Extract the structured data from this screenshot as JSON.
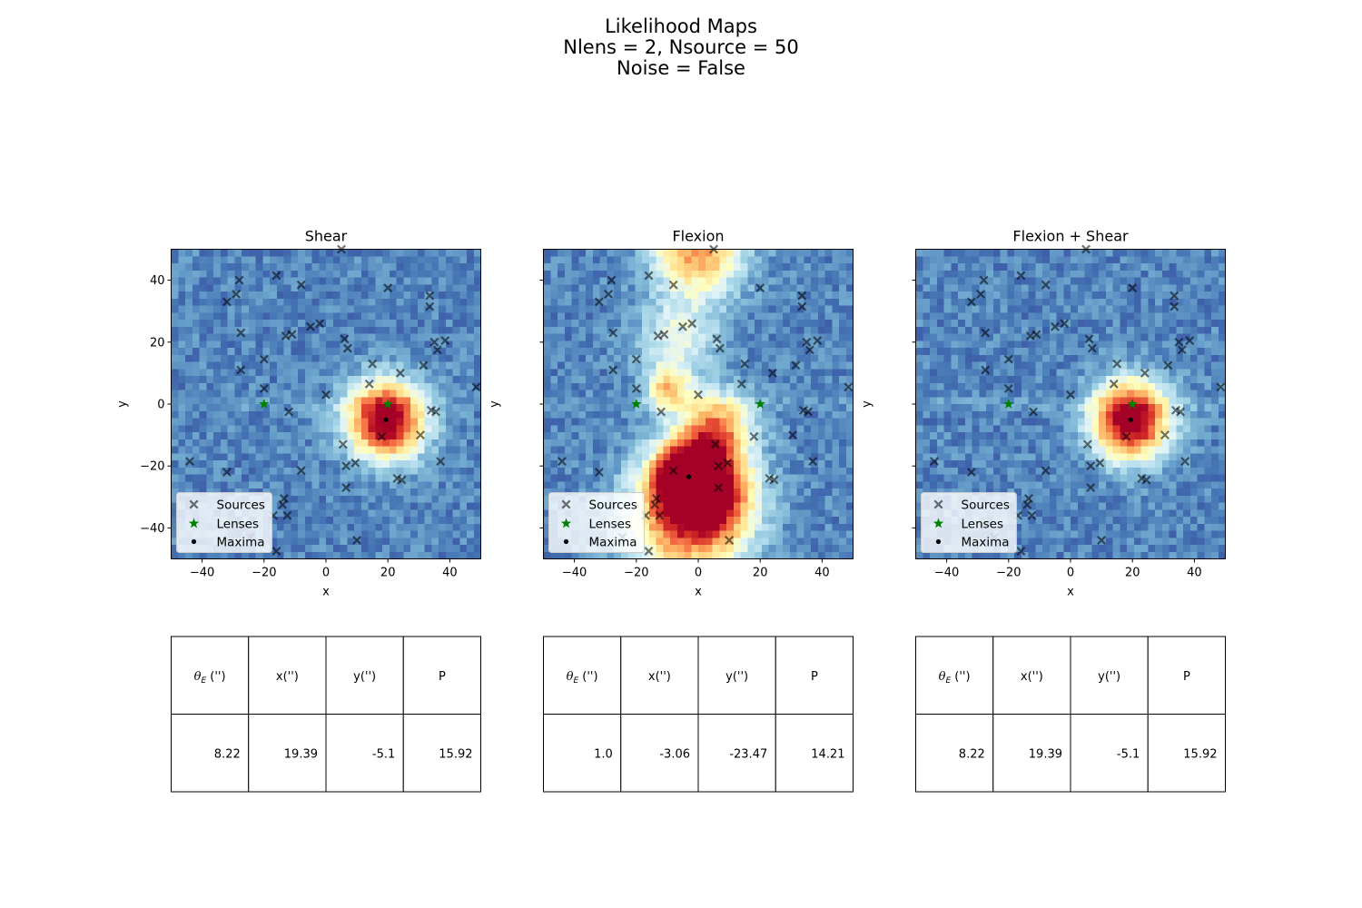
{
  "figure": {
    "suptitle": [
      "Likelihood Maps",
      "Nlens = 2, Nsource = 50",
      "Noise = False"
    ]
  },
  "legend": {
    "sources": "Sources",
    "lenses": "Lenses",
    "maxima": "Maxima"
  },
  "colors": {
    "sources_marker": "#000000",
    "lenses_marker": "#008000",
    "maxima_marker": "#000000",
    "colormap": "RdYlBu_r"
  },
  "chart_data": [
    {
      "type": "heatmap",
      "title": "Shear",
      "xlabel": "x",
      "ylabel": "y",
      "xlim": [
        -50,
        50
      ],
      "ylim": [
        -50,
        50
      ],
      "xticks": [
        -40,
        -20,
        0,
        20,
        40
      ],
      "yticks": [
        -40,
        -20,
        0,
        20,
        40
      ],
      "xtick_labels": [
        "−40",
        "−20",
        "0",
        "20",
        "40"
      ],
      "ytick_labels": [
        "−40",
        "−20",
        "0",
        "20",
        "40"
      ],
      "legend_position": "lower-left",
      "likelihood_peaks": [
        {
          "x": 19.39,
          "y": -5.1,
          "width": 8.5,
          "amplitude": 1.0
        }
      ],
      "lenses": [
        [
          -20,
          0
        ],
        [
          20,
          0
        ]
      ],
      "maxima": [
        [
          19.39,
          -5.1
        ]
      ],
      "table": {
        "columns": [
          "θ_E ('')",
          "x('')",
          "y('')",
          "P"
        ],
        "row": [
          "8.22",
          "19.39",
          "-5.1",
          "15.92"
        ]
      }
    },
    {
      "type": "heatmap",
      "title": "Flexion",
      "xlabel": "x",
      "ylabel": "y",
      "xlim": [
        -50,
        50
      ],
      "ylim": [
        -50,
        50
      ],
      "xticks": [
        -40,
        -20,
        0,
        20,
        40
      ],
      "yticks": [
        -40,
        -20,
        0,
        20,
        40
      ],
      "xtick_labels": [
        "−40",
        "−20",
        "0",
        "20",
        "40"
      ],
      "ytick_labels": [
        "−40",
        "−20",
        "0",
        "20",
        "40"
      ],
      "legend_position": "lower-left",
      "likelihood_peaks": [
        {
          "x": -3.06,
          "y": -23.47,
          "width": 8,
          "amplitude": 1.0
        },
        {
          "x": -4,
          "y": -38,
          "width": 13,
          "amplitude": 0.68
        },
        {
          "x": 6,
          "y": -8,
          "width": 8,
          "amplitude": 0.62
        },
        {
          "x": -10,
          "y": 5,
          "width": 5,
          "amplitude": 0.48
        },
        {
          "x": 0,
          "y": 50,
          "width": 10,
          "amplitude": 0.62
        },
        {
          "x": -6,
          "y": 22,
          "width": 9,
          "amplitude": 0.28
        },
        {
          "x": 6,
          "y": -30,
          "width": 9,
          "amplitude": 0.5
        }
      ],
      "lenses": [
        [
          -20,
          0
        ],
        [
          20,
          0
        ]
      ],
      "maxima": [
        [
          -3.06,
          -23.47
        ]
      ],
      "table": {
        "columns": [
          "θ_E ('')",
          "x('')",
          "y('')",
          "P"
        ],
        "row": [
          "1.0",
          "-3.06",
          "-23.47",
          "14.21"
        ]
      }
    },
    {
      "type": "heatmap",
      "title": "Flexion + Shear",
      "xlabel": "x",
      "ylabel": "y",
      "xlim": [
        -50,
        50
      ],
      "ylim": [
        -50,
        50
      ],
      "xticks": [
        -40,
        -20,
        0,
        20,
        40
      ],
      "yticks": [
        -40,
        -20,
        0,
        20,
        40
      ],
      "xtick_labels": [
        "−40",
        "−20",
        "0",
        "20",
        "40"
      ],
      "ytick_labels": [
        "−40",
        "−20",
        "0",
        "20",
        "40"
      ],
      "legend_position": "lower-left",
      "likelihood_peaks": [
        {
          "x": 19.39,
          "y": -5.1,
          "width": 8.5,
          "amplitude": 1.0
        }
      ],
      "lenses": [
        [
          -20,
          0
        ],
        [
          20,
          0
        ]
      ],
      "maxima": [
        [
          19.39,
          -5.1
        ]
      ],
      "table": {
        "columns": [
          "θ_E ('')",
          "x('')",
          "y('')",
          "P"
        ],
        "row": [
          "8.22",
          "19.39",
          "-5.1",
          "15.92"
        ]
      }
    }
  ],
  "sources": [
    [
      -28,
      40
    ],
    [
      -29,
      35.5
    ],
    [
      -32,
      33
    ],
    [
      -16,
      41.5
    ],
    [
      -8,
      38.5
    ],
    [
      5,
      50
    ],
    [
      20,
      37.5
    ],
    [
      33.5,
      35
    ],
    [
      33.5,
      31.5
    ],
    [
      -27.5,
      23
    ],
    [
      -13,
      22
    ],
    [
      -11,
      22.5
    ],
    [
      -5,
      25
    ],
    [
      -2,
      26
    ],
    [
      6,
      21
    ],
    [
      7,
      18
    ],
    [
      -20,
      14.5
    ],
    [
      -27.5,
      11
    ],
    [
      35,
      20
    ],
    [
      36,
      17.5
    ],
    [
      38.5,
      20.5
    ],
    [
      31.5,
      12.5
    ],
    [
      15,
      13
    ],
    [
      24,
      10
    ],
    [
      -20,
      5
    ],
    [
      14,
      6.5
    ],
    [
      0,
      3
    ],
    [
      48.5,
      5.5
    ],
    [
      -12,
      -2.5
    ],
    [
      34,
      -2
    ],
    [
      35.5,
      -2.5
    ],
    [
      30.5,
      -10
    ],
    [
      5.5,
      -13
    ],
    [
      18,
      -10.5
    ],
    [
      -44,
      -18.5
    ],
    [
      -32,
      -22
    ],
    [
      -8,
      -21.5
    ],
    [
      6.5,
      -20
    ],
    [
      9.5,
      -19
    ],
    [
      37,
      -18.5
    ],
    [
      23,
      -24
    ],
    [
      24.5,
      -24.5
    ],
    [
      6.5,
      -27
    ],
    [
      -13.5,
      -30.5
    ],
    [
      -14,
      -32.5
    ],
    [
      -12.5,
      -36
    ],
    [
      -17,
      -36
    ],
    [
      10,
      -44
    ],
    [
      -16,
      -47.5
    ],
    [
      -24.5,
      -43
    ]
  ]
}
